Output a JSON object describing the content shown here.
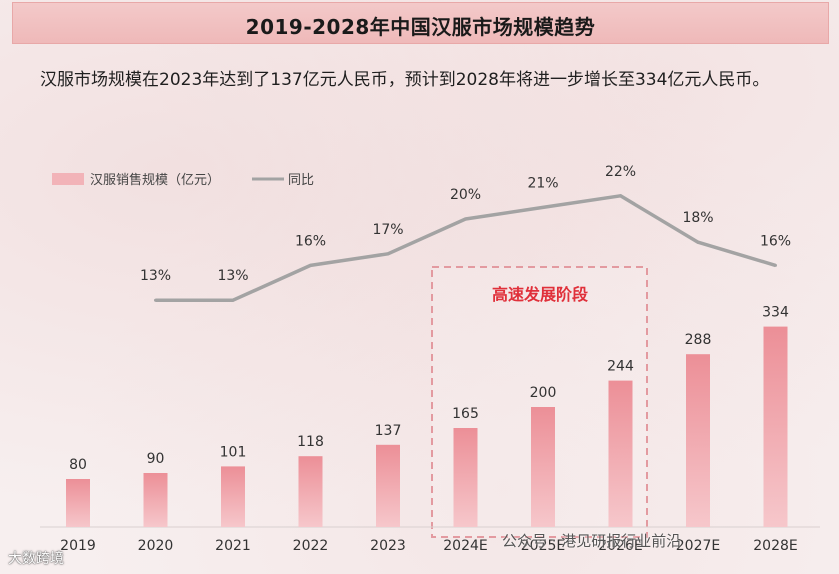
{
  "header": {
    "title": "2019-2028年中国汉服市场规模趋势"
  },
  "description": "汉服市场规模在2023年达到了137亿元人民币，预计到2028年将进一步增长至334亿元人民币。",
  "chart_data": {
    "type": "bar",
    "title": "2019-2028年中国汉服市场规模趋势",
    "categories": [
      "2019",
      "2020",
      "2021",
      "2022",
      "2023",
      "2024E",
      "2025E",
      "2026E",
      "2027E",
      "2028E"
    ],
    "series": [
      {
        "name": "汉服销售规模（亿元）",
        "type": "bar",
        "values": [
          80,
          90,
          101,
          118,
          137,
          165,
          200,
          244,
          288,
          334
        ]
      },
      {
        "name": "同比",
        "type": "line",
        "values": [
          null,
          13,
          13,
          16,
          17,
          20,
          21,
          22,
          18,
          16
        ],
        "labels": [
          "",
          "13%",
          "13%",
          "16%",
          "17%",
          "20%",
          "21%",
          "22%",
          "18%",
          "16%"
        ]
      }
    ],
    "ylim": [
      0,
      350
    ],
    "y2lim": [
      0,
      25
    ],
    "annotation": "高速发展阶段",
    "legend": "top-left",
    "colors": {
      "bar": "#f0a7ad",
      "bar_top": "#ec8f97",
      "line": "#a3a3a3",
      "annotation": "#e0303a",
      "box": "#e39aa0"
    }
  },
  "watermarks": {
    "left": "大数跨境",
    "right": "公众号 · 港见研报行业前沿"
  }
}
